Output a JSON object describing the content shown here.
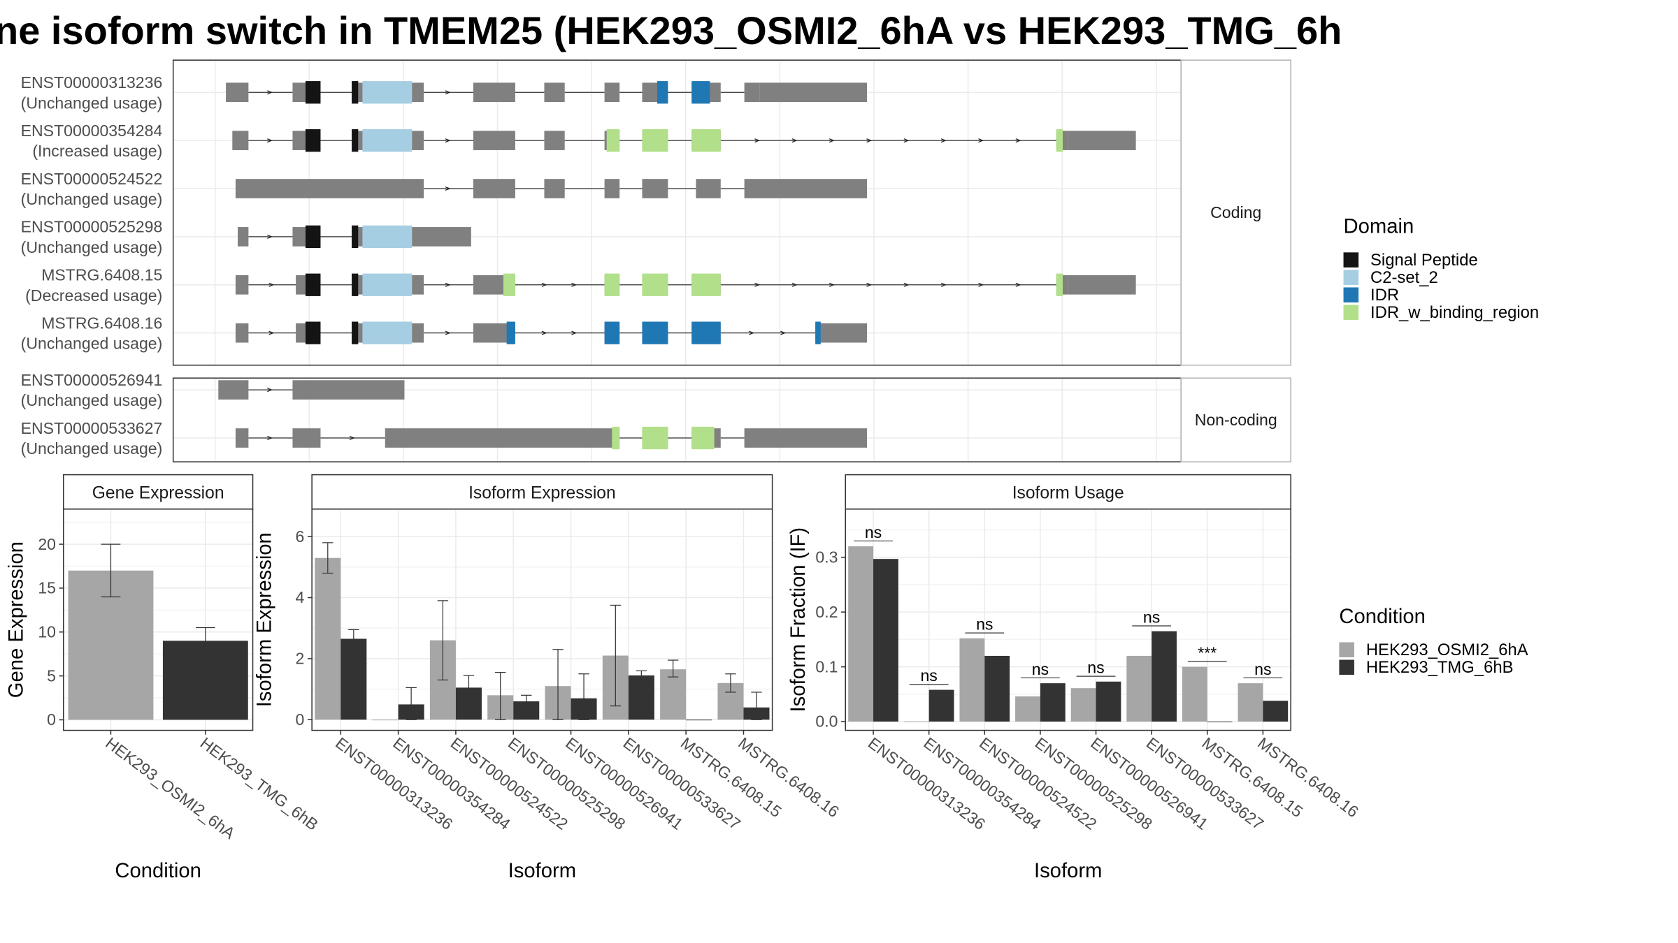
{
  "title": "ne isoform switch in TMEM25 (HEK293_OSMI2_6hA vs HEK293_TMG_6h",
  "colors": {
    "exon": "#808080",
    "signal_peptide": "#141414",
    "c2_set_2": "#a6cee3",
    "idr": "#1f78b4",
    "idr_w_binding_region": "#b2df8a",
    "cond_a": "#a6a6a6",
    "cond_b": "#333333"
  },
  "transcripts": [
    {
      "id": "ENST00000313236",
      "usage": "(Unchanged usage)",
      "group": "Coding",
      "exons": [
        [
          210,
          231
        ],
        [
          272,
          284
        ],
        [
          284,
          298
        ],
        [
          327,
          333
        ],
        [
          333,
          337
        ],
        [
          337,
          383
        ],
        [
          383,
          394
        ],
        [
          440,
          479
        ],
        [
          506,
          525
        ],
        [
          562,
          576
        ],
        [
          597,
          611
        ],
        [
          611,
          621
        ],
        [
          643,
          660
        ],
        [
          660,
          670
        ],
        [
          692,
          706
        ],
        [
          706,
          806
        ]
      ],
      "domains": [
        [
          "signal_peptide",
          284,
          298
        ],
        [
          "signal_peptide",
          327,
          333
        ],
        [
          "c2_set_2",
          337,
          383
        ],
        [
          "idr",
          611,
          621
        ],
        [
          "idr",
          643,
          660
        ]
      ]
    },
    {
      "id": "ENST00000354284",
      "usage": "(Increased usage)",
      "group": "Coding",
      "exons": [
        [
          216,
          231
        ],
        [
          272,
          284
        ],
        [
          284,
          298
        ],
        [
          327,
          333
        ],
        [
          333,
          337
        ],
        [
          337,
          383
        ],
        [
          383,
          394
        ],
        [
          440,
          479
        ],
        [
          506,
          525
        ],
        [
          562,
          576
        ],
        [
          597,
          621
        ],
        [
          643,
          670
        ],
        [
          982,
          993
        ],
        [
          993,
          1056
        ]
      ],
      "domains": [
        [
          "signal_peptide",
          284,
          298
        ],
        [
          "signal_peptide",
          327,
          333
        ],
        [
          "c2_set_2",
          337,
          383
        ],
        [
          "idr_w_binding_region",
          564,
          576
        ],
        [
          "idr_w_binding_region",
          597,
          621
        ],
        [
          "idr_w_binding_region",
          643,
          670
        ],
        [
          "idr_w_binding_region",
          982,
          988
        ]
      ]
    },
    {
      "id": "ENST00000524522",
      "usage": "(Unchanged usage)",
      "group": "Coding",
      "exons": [
        [
          219,
          394
        ],
        [
          440,
          479
        ],
        [
          506,
          525
        ],
        [
          562,
          576
        ],
        [
          597,
          621
        ],
        [
          647,
          670
        ],
        [
          692,
          806
        ]
      ],
      "domains": []
    },
    {
      "id": "ENST00000525298",
      "usage": "(Unchanged usage)",
      "group": "Coding",
      "exons": [
        [
          221,
          231
        ],
        [
          272,
          284
        ],
        [
          284,
          298
        ],
        [
          327,
          333
        ],
        [
          333,
          337
        ],
        [
          337,
          383
        ],
        [
          383,
          438
        ]
      ],
      "domains": [
        [
          "signal_peptide",
          284,
          298
        ],
        [
          "signal_peptide",
          327,
          333
        ],
        [
          "c2_set_2",
          337,
          383
        ]
      ]
    },
    {
      "id": "MSTRG.6408.15",
      "usage": "(Decreased usage)",
      "group": "Coding",
      "exons": [
        [
          219,
          231
        ],
        [
          275,
          284
        ],
        [
          284,
          298
        ],
        [
          327,
          333
        ],
        [
          333,
          337
        ],
        [
          337,
          383
        ],
        [
          383,
          394
        ],
        [
          440,
          468
        ],
        [
          468,
          479
        ],
        [
          562,
          576
        ],
        [
          597,
          621
        ],
        [
          643,
          670
        ],
        [
          982,
          993
        ],
        [
          993,
          1056
        ]
      ],
      "domains": [
        [
          "signal_peptide",
          284,
          298
        ],
        [
          "signal_peptide",
          327,
          333
        ],
        [
          "c2_set_2",
          337,
          383
        ],
        [
          "idr_w_binding_region",
          468,
          479
        ],
        [
          "idr_w_binding_region",
          562,
          576
        ],
        [
          "idr_w_binding_region",
          597,
          621
        ],
        [
          "idr_w_binding_region",
          643,
          670
        ],
        [
          "idr_w_binding_region",
          982,
          988
        ]
      ]
    },
    {
      "id": "MSTRG.6408.16",
      "usage": "(Unchanged usage)",
      "group": "Coding",
      "exons": [
        [
          219,
          231
        ],
        [
          275,
          284
        ],
        [
          284,
          298
        ],
        [
          327,
          333
        ],
        [
          333,
          337
        ],
        [
          337,
          383
        ],
        [
          383,
          394
        ],
        [
          440,
          471
        ],
        [
          471,
          479
        ],
        [
          562,
          576
        ],
        [
          597,
          621
        ],
        [
          643,
          670
        ],
        [
          758,
          763
        ],
        [
          763,
          806
        ]
      ],
      "domains": [
        [
          "signal_peptide",
          284,
          298
        ],
        [
          "signal_peptide",
          327,
          333
        ],
        [
          "c2_set_2",
          337,
          383
        ],
        [
          "idr",
          471,
          479
        ],
        [
          "idr",
          562,
          576
        ],
        [
          "idr",
          597,
          621
        ],
        [
          "idr",
          643,
          670
        ],
        [
          "idr",
          758,
          763
        ]
      ]
    },
    {
      "id": "ENST00000526941",
      "usage": "(Unchanged usage)",
      "group": "Non-coding",
      "exons": [
        [
          203,
          231
        ],
        [
          272,
          376
        ]
      ],
      "domains": []
    },
    {
      "id": "ENST00000533627",
      "usage": "(Unchanged usage)",
      "group": "Non-coding",
      "exons": [
        [
          219,
          231
        ],
        [
          272,
          298
        ],
        [
          358,
          569
        ],
        [
          569,
          576
        ],
        [
          597,
          621
        ],
        [
          643,
          664
        ],
        [
          664,
          670
        ],
        [
          692,
          806
        ]
      ],
      "domains": [
        [
          "idr_w_binding_region",
          569,
          576
        ],
        [
          "idr_w_binding_region",
          597,
          621
        ],
        [
          "idr_w_binding_region",
          643,
          664
        ]
      ]
    }
  ],
  "facet_labels": {
    "coding": "Coding",
    "non_coding": "Non-coding"
  },
  "legend_domain": {
    "title": "Domain",
    "items": [
      {
        "label": "Signal Peptide",
        "color": "#141414"
      },
      {
        "label": "C2-set_2",
        "color": "#a6cee3"
      },
      {
        "label": "IDR",
        "color": "#1f78b4"
      },
      {
        "label": "IDR_w_binding_region",
        "color": "#b2df8a"
      }
    ]
  },
  "legend_condition": {
    "title": "Condition",
    "items": [
      {
        "label": "HEK293_OSMI2_6hA",
        "color": "#a6a6a6"
      },
      {
        "label": "HEK293_TMG_6hB",
        "color": "#333333"
      }
    ]
  },
  "chart_data": [
    {
      "type": "bar",
      "title": "Gene Expression",
      "xlabel": "Condition",
      "ylabel": "Gene Expression",
      "categories": [
        "HEK293_OSMI2_6hA",
        "HEK293_TMG_6hB"
      ],
      "values": [
        17.0,
        9.0
      ],
      "error": [
        [
          14.0,
          20.0
        ],
        [
          7.5,
          10.5
        ]
      ],
      "ylim": [
        -1.2,
        24
      ],
      "yticks": [
        0,
        5,
        10,
        15,
        20
      ]
    },
    {
      "type": "bar",
      "title": "Isoform Expression",
      "xlabel": "Isoform",
      "ylabel": "Isoform Expression",
      "categories": [
        "ENST00000313236",
        "ENST00000354284",
        "ENST00000524522",
        "ENST00000525298",
        "ENST00000526941",
        "ENST00000533627",
        "MSTRG.6408.15",
        "MSTRG.6408.16"
      ],
      "series": [
        {
          "name": "HEK293_OSMI2_6hA",
          "values": [
            5.3,
            0.0,
            2.6,
            0.8,
            1.1,
            2.1,
            1.65,
            1.2
          ],
          "error": [
            [
              4.8,
              5.8
            ],
            [
              0,
              0
            ],
            [
              1.3,
              3.9
            ],
            [
              0.0,
              1.55
            ],
            [
              0.0,
              2.3
            ],
            [
              0.45,
              3.75
            ],
            [
              1.4,
              1.95
            ],
            [
              0.9,
              1.5
            ]
          ]
        },
        {
          "name": "HEK293_TMG_6hB",
          "values": [
            2.65,
            0.5,
            1.05,
            0.6,
            0.7,
            1.45,
            0.0,
            0.4
          ],
          "error": [
            [
              2.35,
              2.95
            ],
            [
              0.0,
              1.05
            ],
            [
              0.65,
              1.45
            ],
            [
              0.4,
              0.8
            ],
            [
              0.0,
              1.5
            ],
            [
              1.3,
              1.6
            ],
            [
              0,
              0
            ],
            [
              0.0,
              0.9
            ]
          ]
        }
      ],
      "ylim": [
        -0.35,
        6.9
      ],
      "yticks": [
        0,
        2,
        4,
        6
      ]
    },
    {
      "type": "bar",
      "title": "Isoform Usage",
      "xlabel": "Isoform",
      "ylabel": "Isoform Fraction (IF)",
      "categories": [
        "ENST00000313236",
        "ENST00000354284",
        "ENST00000524522",
        "ENST00000525298",
        "ENST00000526941",
        "ENST00000533627",
        "MSTRG.6408.15",
        "MSTRG.6408.16"
      ],
      "series": [
        {
          "name": "HEK293_OSMI2_6hA",
          "values": [
            0.32,
            0.0,
            0.152,
            0.046,
            0.061,
            0.12,
            0.1,
            0.07
          ]
        },
        {
          "name": "HEK293_TMG_6hB",
          "values": [
            0.297,
            0.058,
            0.12,
            0.07,
            0.073,
            0.165,
            0.0,
            0.038
          ]
        }
      ],
      "significance": [
        "ns",
        "ns",
        "ns",
        "ns",
        "ns",
        "ns",
        "***",
        "ns"
      ],
      "ylim": [
        -0.016,
        0.388
      ],
      "yticks": [
        "0.0",
        "0.1",
        "0.2",
        "0.3"
      ]
    }
  ]
}
